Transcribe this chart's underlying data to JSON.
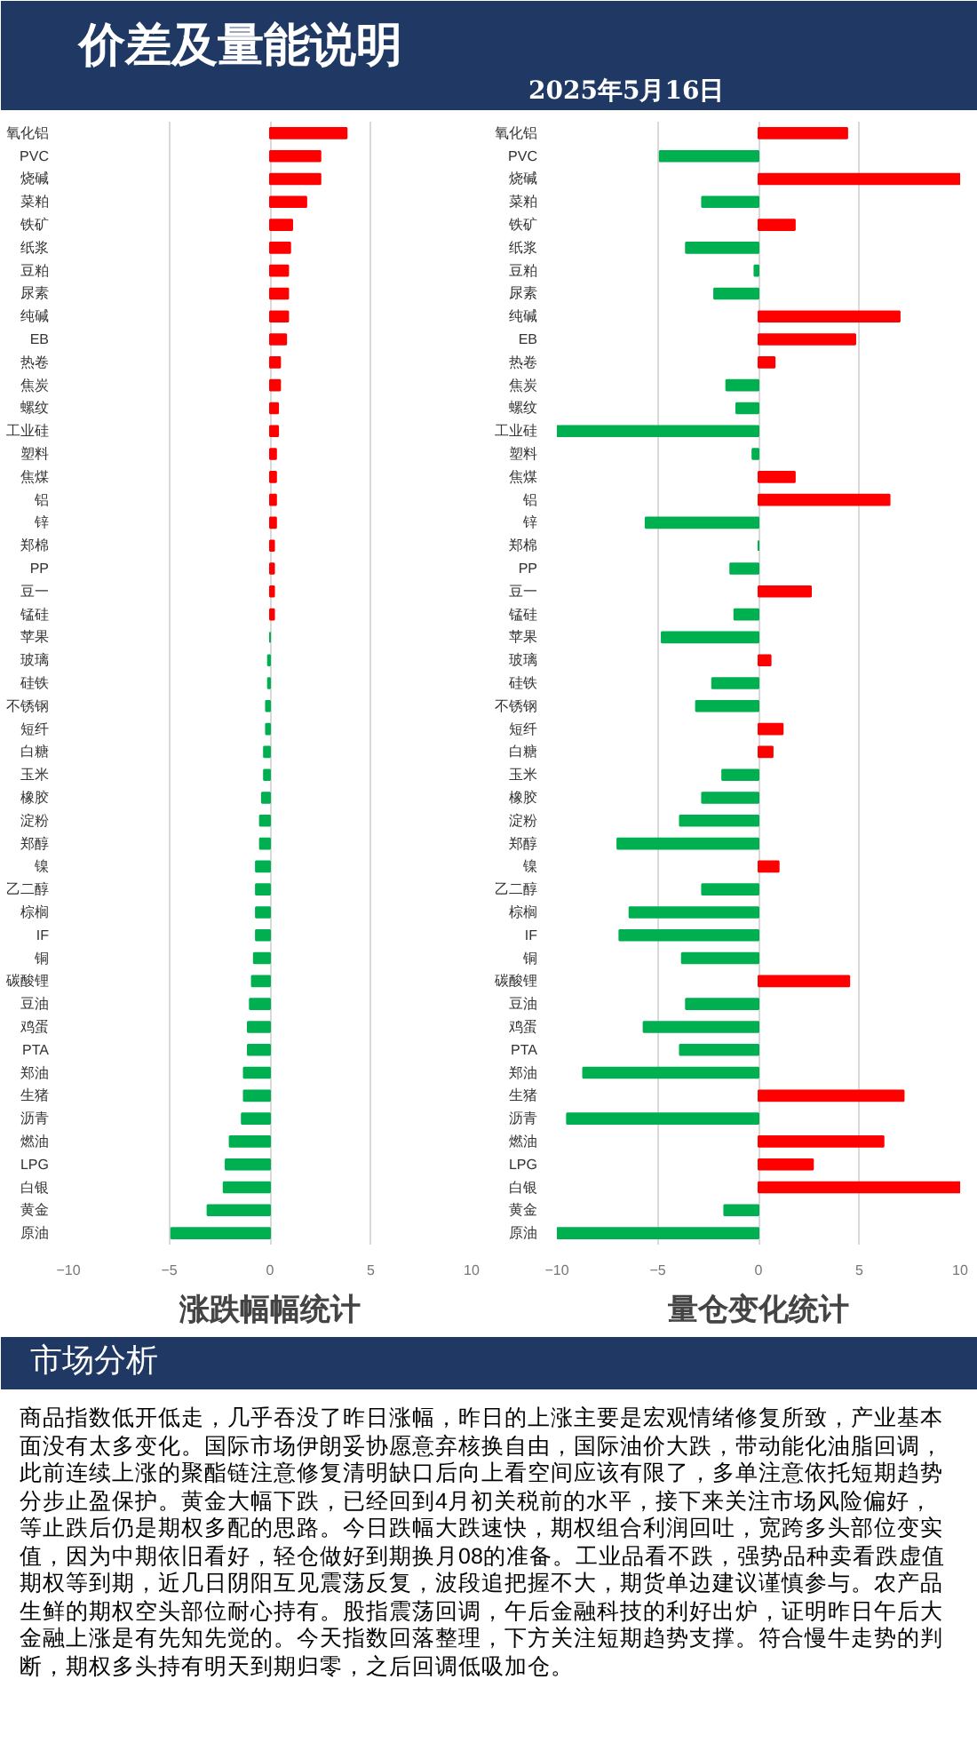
{
  "chart_data": [
    {
      "type": "other",
      "title": "价差及量能说明",
      "subtitle": "2025年5月16日"
    },
    {
      "type": "bar",
      "orientation": "horizontal",
      "title": "涨跌幅幅统计",
      "grid": "x",
      "xlim": [
        -10,
        10
      ],
      "xticks": [
        -10,
        -5,
        0,
        5,
        10
      ],
      "categories": [
        "氧化铝",
        "PVC",
        "烧碱",
        "菜粕",
        "铁矿",
        "纸浆",
        "豆粕",
        "尿素",
        "纯碱",
        "EB",
        "热卷",
        "焦炭",
        "螺纹",
        "工业硅",
        "塑料",
        "焦煤",
        "铝",
        "锌",
        "郑棉",
        "PP",
        "豆一",
        "锰硅",
        "苹果",
        "玻璃",
        "硅铁",
        "不锈钢",
        "短纤",
        "白糖",
        "玉米",
        "橡胶",
        "淀粉",
        "郑醇",
        "镍",
        "乙二醇",
        "棕榈",
        "IF",
        "铜",
        "碳酸锂",
        "豆油",
        "鸡蛋",
        "PTA",
        "郑油",
        "生猪",
        "沥青",
        "燃油",
        "LPG",
        "白银",
        "黄金",
        "原油"
      ],
      "values": [
        3.8,
        2.5,
        2.5,
        1.8,
        1.1,
        1.0,
        0.9,
        0.9,
        0.9,
        0.8,
        0.5,
        0.5,
        0.4,
        0.4,
        0.3,
        0.3,
        0.3,
        0.3,
        0.2,
        0.2,
        0.2,
        0.2,
        0,
        -0.1,
        -0.1,
        -0.2,
        -0.2,
        -0.3,
        -0.3,
        -0.4,
        -0.5,
        -0.5,
        -0.7,
        -0.7,
        -0.7,
        -0.7,
        -0.8,
        -0.9,
        -1.0,
        -1.1,
        -1.1,
        -1.3,
        -1.3,
        -1.4,
        -2.0,
        -2.2,
        -2.3,
        -3.1,
        -4.9
      ],
      "colors": [
        "#ff0000",
        "#ff0000",
        "#ff0000",
        "#ff0000",
        "#ff0000",
        "#ff0000",
        "#ff0000",
        "#ff0000",
        "#ff0000",
        "#ff0000",
        "#ff0000",
        "#ff0000",
        "#ff0000",
        "#ff0000",
        "#ff0000",
        "#ff0000",
        "#ff0000",
        "#ff0000",
        "#ff0000",
        "#ff0000",
        "#ff0000",
        "#ff0000",
        "#00b050",
        "#00b050",
        "#00b050",
        "#00b050",
        "#00b050",
        "#00b050",
        "#00b050",
        "#00b050",
        "#00b050",
        "#00b050",
        "#00b050",
        "#00b050",
        "#00b050",
        "#00b050",
        "#00b050",
        "#00b050",
        "#00b050",
        "#00b050",
        "#00b050",
        "#00b050",
        "#00b050",
        "#00b050",
        "#00b050",
        "#00b050",
        "#00b050",
        "#00b050",
        "#00b050"
      ]
    },
    {
      "type": "bar",
      "orientation": "horizontal",
      "title": "量仓变化统计",
      "grid": "x",
      "xlim": [
        -10,
        10
      ],
      "xticks": [
        -10,
        -5,
        0,
        5,
        10
      ],
      "categories": [
        "氧化铝",
        "PVC",
        "烧碱",
        "菜粕",
        "铁矿",
        "纸浆",
        "豆粕",
        "尿素",
        "纯碱",
        "EB",
        "热卷",
        "焦炭",
        "螺纹",
        "工业硅",
        "塑料",
        "焦煤",
        "铝",
        "锌",
        "郑棉",
        "PP",
        "豆一",
        "锰硅",
        "苹果",
        "玻璃",
        "硅铁",
        "不锈钢",
        "短纤",
        "白糖",
        "玉米",
        "橡胶",
        "淀粉",
        "郑醇",
        "镍",
        "乙二醇",
        "棕榈",
        "IF",
        "铜",
        "碳酸锂",
        "豆油",
        "鸡蛋",
        "PTA",
        "郑油",
        "生猪",
        "沥青",
        "燃油",
        "LPG",
        "白银",
        "黄金",
        "原油"
      ],
      "values": [
        4.4,
        -4.9,
        10,
        -2.8,
        1.8,
        -3.6,
        -0.2,
        -2.2,
        7.0,
        4.8,
        0.8,
        -1.6,
        -1.1,
        -10,
        -0.3,
        1.8,
        6.5,
        -5.6,
        0,
        -1.4,
        2.6,
        -1.2,
        -4.8,
        0.6,
        -2.3,
        -3.1,
        1.2,
        0.7,
        -1.8,
        -2.8,
        -3.9,
        -7.0,
        1.0,
        -2.8,
        -6.4,
        -6.9,
        -3.8,
        4.5,
        -3.6,
        -5.7,
        -3.9,
        -8.7,
        7.2,
        -9.5,
        6.2,
        2.7,
        10,
        -1.7,
        -10
      ],
      "colors": [
        "#ff0000",
        "#00b050",
        "#ff0000",
        "#00b050",
        "#ff0000",
        "#00b050",
        "#00b050",
        "#00b050",
        "#ff0000",
        "#ff0000",
        "#ff0000",
        "#00b050",
        "#00b050",
        "#00b050",
        "#00b050",
        "#ff0000",
        "#ff0000",
        "#00b050",
        "#00b050",
        "#00b050",
        "#ff0000",
        "#00b050",
        "#00b050",
        "#ff0000",
        "#00b050",
        "#00b050",
        "#ff0000",
        "#ff0000",
        "#00b050",
        "#00b050",
        "#00b050",
        "#00b050",
        "#ff0000",
        "#00b050",
        "#00b050",
        "#00b050",
        "#00b050",
        "#ff0000",
        "#00b050",
        "#00b050",
        "#00b050",
        "#00b050",
        "#ff0000",
        "#00b050",
        "#ff0000",
        "#ff0000",
        "#ff0000",
        "#00b050",
        "#00b050"
      ]
    },
    {
      "type": "other",
      "title": "市场分析",
      "annotations": [
        "商品指数低开低走，几乎吞没了昨日涨幅，昨日的上涨主要是宏观情绪修复所致，产业基本面没有太多变化。国际市场伊朗妥协愿意弃核换自由，国际油价大跌，带动能化油脂回调，此前连续上涨的聚酯链注意修复清明缺口后向上看空间应该有限了，多单注意依托短期趋势分步止盈保护。黄金大幅下跌，已经回到4月初关税前的水平，接下来关注市场风险偏好，等止跌后仍是期权多配的思路。今日跌幅大跌速快，期权组合利润回吐，宽跨多头部位变实值，因为中期依旧看好，轻仓做好到期换月08的准备。工业品看不跌，强势品种卖看跌虚值期权等到期，近几日阴阳互见震荡反复，波段追把握不大，期货单边建议谨慎参与。农产品生鲜的期权空头部位耐心持有。股指震荡回调，午后金融科技的利好出炉，证明昨日午后大金融上涨是有先知先觉的。今天指数回落整理，下方关注短期趋势支撑。符合慢牛走势的判断，期权多头持有明天到期归零，之后回调低吸加仓。"
      ]
    }
  ]
}
